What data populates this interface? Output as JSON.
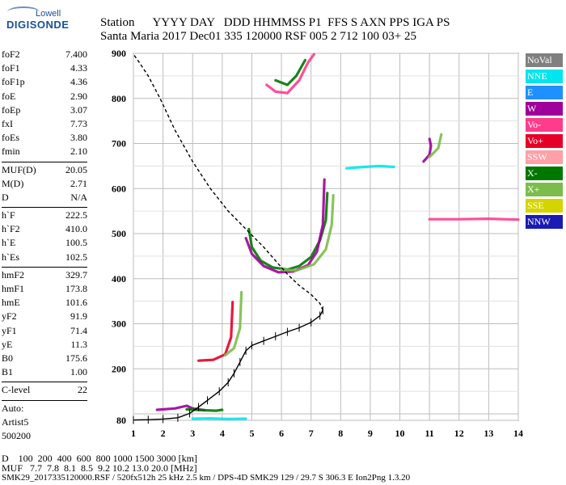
{
  "logo": {
    "top": "Lowell",
    "bottom": "DIGISONDE"
  },
  "header": {
    "row1": "Station      YYYY DAY   DDD HHMMSS P1  FFS S AXN PPS IGA PS",
    "row2": "Santa Maria 2017 Dec01 335 120000 RSF 005 2 712 100 03+ 25"
  },
  "params": [
    {
      "name": "foF2",
      "value": "7.400"
    },
    {
      "name": "foF1",
      "value": "4.33"
    },
    {
      "name": "foF1p",
      "value": "4.36"
    },
    {
      "name": "foE",
      "value": "2.90"
    },
    {
      "name": "foEp",
      "value": "3.07"
    },
    {
      "name": "fxI",
      "value": "7.73"
    },
    {
      "name": "foEs",
      "value": "3.80"
    },
    {
      "name": "fmin",
      "value": "2.10"
    },
    {
      "sep": true
    },
    {
      "name": "MUF(D)",
      "value": "20.05"
    },
    {
      "name": "M(D)",
      "value": "2.71"
    },
    {
      "name": "D",
      "value": "N/A"
    },
    {
      "sep": true
    },
    {
      "name": "h`F",
      "value": "222.5"
    },
    {
      "name": "h`F2",
      "value": "410.0"
    },
    {
      "name": "h`E",
      "value": "100.5"
    },
    {
      "name": "h`Es",
      "value": "102.5"
    },
    {
      "sep": true
    },
    {
      "name": "hmF2",
      "value": "329.7"
    },
    {
      "name": "hmF1",
      "value": "173.8"
    },
    {
      "name": "hmE",
      "value": "101.6"
    },
    {
      "name": "yF2",
      "value": "91.9"
    },
    {
      "name": "yF1",
      "value": "71.4"
    },
    {
      "name": "yE",
      "value": "11.3"
    },
    {
      "name": "B0",
      "value": "175.6"
    },
    {
      "name": "B1",
      "value": "1.00"
    },
    {
      "sep": true
    },
    {
      "name": "C-level",
      "value": "22"
    },
    {
      "sep": true
    },
    {
      "name": "Auto:",
      "value": ""
    },
    {
      "name": "Artist5",
      "value": ""
    },
    {
      "name": "500200",
      "value": ""
    }
  ],
  "legend": [
    {
      "label": "NoVal",
      "color": "#808080"
    },
    {
      "label": "NNE",
      "color": "#00e5ee"
    },
    {
      "label": "E",
      "color": "#1e90ff"
    },
    {
      "label": "W",
      "color": "#a0009a"
    },
    {
      "label": "Vo-",
      "color": "#ff3c8c"
    },
    {
      "label": "Vo+",
      "color": "#e60028"
    },
    {
      "label": "SSW",
      "color": "#ffa0a8"
    },
    {
      "label": "X-",
      "color": "#007800"
    },
    {
      "label": "X+",
      "color": "#7cbc4c"
    },
    {
      "label": "SSE",
      "color": "#d4d400"
    },
    {
      "label": "NNW",
      "color": "#1a1ab4"
    }
  ],
  "footer": {
    "row1": "D    100  200  400  600  800 1000 1500 3000 [km]",
    "row2": "MUF   7.7  7.8  8.1  8.5  9.2 10.2 13.0 20.0 [MHz]",
    "row3": "SMK29_2017335120000.RSF / 520fx512h 25 kHz 2.5 km / DPS-4D SMK29 129 / 29.7 S 306.3 E Ion2Png 1.3.20"
  },
  "chart_data": {
    "type": "scatter",
    "xlim": [
      1,
      14
    ],
    "ylim": [
      80,
      900
    ],
    "x_ticks": [
      1,
      2,
      3,
      4,
      5,
      6,
      7,
      8,
      9,
      10,
      11,
      12,
      13,
      14
    ],
    "y_ticks": [
      80,
      100,
      200,
      300,
      400,
      500,
      600,
      700,
      800,
      900
    ],
    "profile": [
      [
        1.0,
        81
      ],
      [
        1.5,
        82
      ],
      [
        2.0,
        84
      ],
      [
        2.5,
        88
      ],
      [
        2.9,
        101
      ],
      [
        3.2,
        115
      ],
      [
        3.5,
        130
      ],
      [
        3.9,
        150
      ],
      [
        4.2,
        170
      ],
      [
        4.4,
        190
      ],
      [
        4.6,
        215
      ],
      [
        4.8,
        240
      ],
      [
        5.0,
        252
      ],
      [
        5.4,
        262
      ],
      [
        5.8,
        272
      ],
      [
        6.2,
        282
      ],
      [
        6.6,
        291
      ],
      [
        7.0,
        303
      ],
      [
        7.3,
        318
      ],
      [
        7.4,
        330
      ]
    ],
    "extrapolated_profile": [
      [
        7.4,
        330
      ],
      [
        7.3,
        345
      ],
      [
        7.0,
        365
      ],
      [
        6.6,
        385
      ],
      [
        6.2,
        410
      ],
      [
        5.8,
        440
      ],
      [
        5.4,
        470
      ],
      [
        4.8,
        510
      ],
      [
        4.2,
        550
      ],
      [
        3.6,
        600
      ],
      [
        3.0,
        660
      ],
      [
        2.4,
        730
      ],
      [
        1.9,
        800
      ],
      [
        1.5,
        850
      ],
      [
        1.2,
        880
      ],
      [
        1.0,
        898
      ]
    ],
    "traces": [
      {
        "series": "X-",
        "points": [
          [
            4.9,
            510
          ],
          [
            5.0,
            470
          ],
          [
            5.3,
            440
          ],
          [
            5.7,
            425
          ],
          [
            6.2,
            420
          ],
          [
            6.6,
            428
          ],
          [
            7.0,
            448
          ],
          [
            7.3,
            485
          ],
          [
            7.5,
            530
          ],
          [
            7.55,
            590
          ]
        ]
      },
      {
        "series": "W",
        "points": [
          [
            4.8,
            490
          ],
          [
            5.0,
            455
          ],
          [
            5.4,
            428
          ],
          [
            5.9,
            414
          ],
          [
            6.4,
            416
          ],
          [
            6.9,
            430
          ],
          [
            7.2,
            460
          ],
          [
            7.4,
            520
          ],
          [
            7.45,
            620
          ]
        ]
      },
      {
        "series": "X+",
        "points": [
          [
            6.0,
            420
          ],
          [
            6.5,
            418
          ],
          [
            7.1,
            432
          ],
          [
            7.5,
            465
          ],
          [
            7.7,
            520
          ],
          [
            7.75,
            585
          ]
        ]
      },
      {
        "series": "Vo+",
        "points": [
          [
            3.2,
            218
          ],
          [
            3.7,
            220
          ],
          [
            4.1,
            232
          ],
          [
            4.3,
            270
          ],
          [
            4.35,
            348
          ]
        ]
      },
      {
        "series": "X+",
        "points": [
          [
            4.1,
            230
          ],
          [
            4.4,
            246
          ],
          [
            4.6,
            290
          ],
          [
            4.65,
            370
          ]
        ]
      },
      {
        "series": "W",
        "points": [
          [
            1.8,
            109
          ],
          [
            2.4,
            112
          ],
          [
            2.8,
            118
          ],
          [
            3.0,
            112
          ],
          [
            3.4,
            108
          ]
        ]
      },
      {
        "series": "X-",
        "points": [
          [
            2.8,
            110
          ],
          [
            3.4,
            108
          ],
          [
            3.8,
            107
          ],
          [
            4.0,
            109
          ]
        ]
      },
      {
        "series": "Vo-",
        "points": [
          [
            5.5,
            830
          ],
          [
            5.8,
            815
          ],
          [
            6.2,
            812
          ],
          [
            6.6,
            840
          ],
          [
            6.9,
            880
          ],
          [
            7.1,
            898
          ]
        ]
      },
      {
        "series": "X-",
        "points": [
          [
            5.8,
            840
          ],
          [
            6.2,
            830
          ],
          [
            6.5,
            850
          ],
          [
            6.8,
            885
          ]
        ]
      },
      {
        "series": "W",
        "points": [
          [
            10.8,
            660
          ],
          [
            11.0,
            675
          ],
          [
            11.05,
            695
          ],
          [
            11.0,
            710
          ]
        ]
      },
      {
        "series": "X+",
        "points": [
          [
            11.0,
            670
          ],
          [
            11.3,
            690
          ],
          [
            11.4,
            720
          ]
        ]
      },
      {
        "series": "NNE",
        "points": [
          [
            8.2,
            645
          ],
          [
            8.8,
            648
          ],
          [
            9.3,
            650
          ],
          [
            9.8,
            648
          ]
        ]
      },
      {
        "series": "Vo-",
        "points": [
          [
            11.0,
            532
          ],
          [
            12.0,
            532
          ],
          [
            13.0,
            533
          ],
          [
            14.0,
            531
          ]
        ]
      },
      {
        "series": "NNE",
        "points": [
          [
            3.0,
            85
          ],
          [
            3.6,
            86
          ],
          [
            4.2,
            84
          ],
          [
            4.8,
            85
          ]
        ]
      }
    ]
  }
}
